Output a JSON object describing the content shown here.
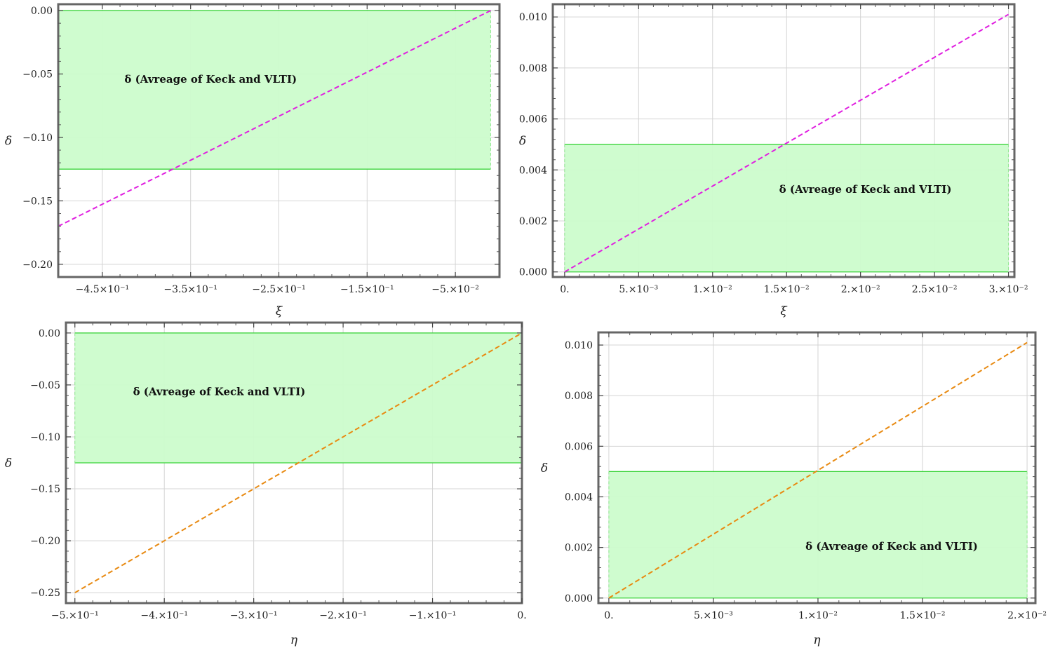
{
  "chart_data": [
    {
      "type": "line",
      "panel": "top-left",
      "xlabel": "ξ",
      "ylabel": "δ",
      "xlim": [
        -0.5,
        0.0
      ],
      "ylim": [
        -0.21,
        0.005
      ],
      "xticks": [
        {
          "v": -0.45,
          "label": "−4.5×10⁻¹"
        },
        {
          "v": -0.35,
          "label": "−3.5×10⁻¹"
        },
        {
          "v": -0.25,
          "label": "−2.5×10⁻¹"
        },
        {
          "v": -0.15,
          "label": "−1.5×10⁻¹"
        },
        {
          "v": -0.05,
          "label": "−5.×10⁻²"
        }
      ],
      "yticks": [
        {
          "v": 0.0,
          "label": "0.00"
        },
        {
          "v": -0.05,
          "label": "−0.05"
        },
        {
          "v": -0.1,
          "label": "−0.10"
        },
        {
          "v": -0.15,
          "label": "−0.15"
        },
        {
          "v": -0.2,
          "label": "−0.20"
        }
      ],
      "band": {
        "x": [
          -0.5,
          -0.01
        ],
        "y": [
          -0.125,
          0.0
        ],
        "label": "δ (Avreage of Keck and VLTI)",
        "label_pos": {
          "x": -0.425,
          "y": -0.057
        }
      },
      "series": [
        {
          "x": [
            -0.5,
            -0.01
          ],
          "y": [
            -0.17,
            0.0
          ],
          "color": "#e020e0",
          "dashed": true
        }
      ],
      "grid": true
    },
    {
      "type": "line",
      "panel": "top-right",
      "xlabel": "ξ",
      "ylabel": "δ",
      "xlim": [
        -0.0008,
        0.0304
      ],
      "ylim": [
        -0.0002,
        0.0105
      ],
      "xticks": [
        {
          "v": 0.0,
          "label": "0."
        },
        {
          "v": 0.005,
          "label": "5.×10⁻³"
        },
        {
          "v": 0.01,
          "label": "1.×10⁻²"
        },
        {
          "v": 0.015,
          "label": "1.5×10⁻²"
        },
        {
          "v": 0.02,
          "label": "2.×10⁻²"
        },
        {
          "v": 0.025,
          "label": "2.5×10⁻²"
        },
        {
          "v": 0.03,
          "label": "3.×10⁻²"
        }
      ],
      "yticks": [
        {
          "v": 0.0,
          "label": "0.000"
        },
        {
          "v": 0.002,
          "label": "0.002"
        },
        {
          "v": 0.004,
          "label": "0.004"
        },
        {
          "v": 0.006,
          "label": "0.006"
        },
        {
          "v": 0.008,
          "label": "0.008"
        },
        {
          "v": 0.01,
          "label": "0.010"
        }
      ],
      "band": {
        "x": [
          0.0,
          0.03
        ],
        "y": [
          0.0,
          0.005
        ],
        "label": "δ (Avreage of Keck and VLTI)",
        "label_pos": {
          "x": 0.0145,
          "y": 0.0031
        }
      },
      "series": [
        {
          "x": [
            0.0,
            0.03
          ],
          "y": [
            0.0,
            0.0101
          ],
          "color": "#e020e0",
          "dashed": true
        }
      ],
      "grid": true
    },
    {
      "type": "line",
      "panel": "bottom-left",
      "xlabel": "η",
      "ylabel": "δ",
      "xlim": [
        -0.51,
        0.0
      ],
      "ylim": [
        -0.26,
        0.01
      ],
      "xticks": [
        {
          "v": -0.5,
          "label": "−5.×10⁻¹"
        },
        {
          "v": -0.4,
          "label": "−4.×10⁻¹"
        },
        {
          "v": -0.3,
          "label": "−3.×10⁻¹"
        },
        {
          "v": -0.2,
          "label": "−2.×10⁻¹"
        },
        {
          "v": -0.1,
          "label": "−1.×10⁻¹"
        },
        {
          "v": 0.0,
          "label": "0."
        }
      ],
      "yticks": [
        {
          "v": 0.0,
          "label": "0.00"
        },
        {
          "v": -0.05,
          "label": "−0.05"
        },
        {
          "v": -0.1,
          "label": "−0.10"
        },
        {
          "v": -0.15,
          "label": "−0.15"
        },
        {
          "v": -0.2,
          "label": "−0.20"
        },
        {
          "v": -0.25,
          "label": "−0.25"
        }
      ],
      "band": {
        "x": [
          -0.5,
          0.0
        ],
        "y": [
          -0.125,
          0.0
        ],
        "label": "δ (Avreage of Keck and VLTI)",
        "label_pos": {
          "x": -0.435,
          "y": -0.06
        }
      },
      "series": [
        {
          "x": [
            -0.5,
            0.0
          ],
          "y": [
            -0.25,
            0.0
          ],
          "color": "#e88a12",
          "dashed": true
        }
      ],
      "grid": true
    },
    {
      "type": "line",
      "panel": "bottom-right",
      "xlabel": "η",
      "ylabel": "δ",
      "xlim": [
        -0.0005,
        0.0204
      ],
      "ylim": [
        -0.0002,
        0.0105
      ],
      "xticks": [
        {
          "v": 0.0,
          "label": "0."
        },
        {
          "v": 0.005,
          "label": "5.×10⁻³"
        },
        {
          "v": 0.01,
          "label": "1.×10⁻²"
        },
        {
          "v": 0.015,
          "label": "1.5×10⁻²"
        },
        {
          "v": 0.02,
          "label": "2.×10⁻²"
        }
      ],
      "yticks": [
        {
          "v": 0.0,
          "label": "0.000"
        },
        {
          "v": 0.002,
          "label": "0.002"
        },
        {
          "v": 0.004,
          "label": "0.004"
        },
        {
          "v": 0.006,
          "label": "0.006"
        },
        {
          "v": 0.008,
          "label": "0.008"
        },
        {
          "v": 0.01,
          "label": "0.010"
        }
      ],
      "band": {
        "x": [
          0.0,
          0.02
        ],
        "y": [
          0.0,
          0.005
        ],
        "label": "δ (Avreage of Keck and VLTI)",
        "label_pos": {
          "x": 0.0094,
          "y": 0.0019
        }
      },
      "series": [
        {
          "x": [
            0.0,
            0.02
          ],
          "y": [
            0.0,
            0.0101
          ],
          "color": "#e88a12",
          "dashed": true
        }
      ],
      "grid": true
    }
  ]
}
